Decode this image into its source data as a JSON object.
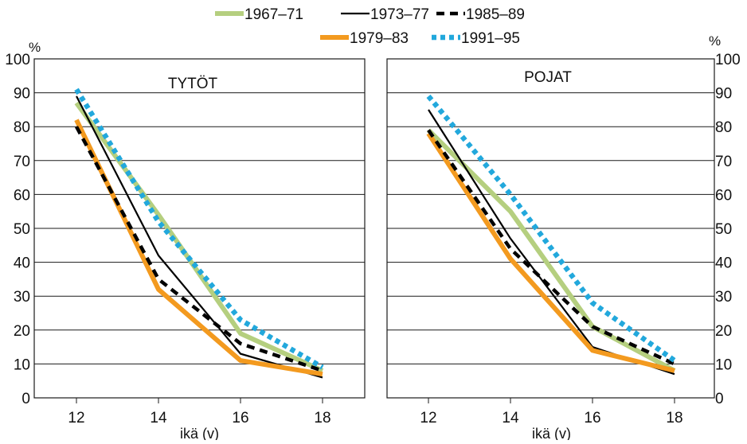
{
  "chart_data": [
    {
      "type": "line",
      "title": "TYTÖT",
      "xlabel": "ikä (v)",
      "ylabel": "%",
      "x": [
        12,
        14,
        16,
        18
      ],
      "xlim": [
        11,
        19
      ],
      "ylim": [
        0,
        100
      ],
      "yticks": [
        0,
        10,
        20,
        30,
        40,
        50,
        60,
        70,
        80,
        90,
        100
      ],
      "ytick_side": "left",
      "grid": true,
      "series": [
        {
          "name": "1967–71",
          "values": [
            87,
            54,
            19,
            8
          ]
        },
        {
          "name": "1973–77",
          "values": [
            89,
            42,
            13,
            6
          ]
        },
        {
          "name": "1985–89",
          "values": [
            80,
            35,
            16,
            8
          ]
        },
        {
          "name": "1979–83",
          "values": [
            82,
            32,
            11,
            7
          ]
        },
        {
          "name": "1991–95",
          "values": [
            91,
            52,
            23,
            9
          ]
        }
      ]
    },
    {
      "type": "line",
      "title": "POJAT",
      "xlabel": "ikä (v)",
      "ylabel": "%",
      "x": [
        12,
        14,
        16,
        18
      ],
      "xlim": [
        11,
        19
      ],
      "ylim": [
        0,
        100
      ],
      "yticks": [
        0,
        10,
        20,
        30,
        40,
        50,
        60,
        70,
        80,
        90,
        100
      ],
      "ytick_side": "right",
      "grid": true,
      "series": [
        {
          "name": "1967–71",
          "values": [
            79,
            55,
            21,
            8
          ]
        },
        {
          "name": "1973–77",
          "values": [
            85,
            47,
            15,
            7
          ]
        },
        {
          "name": "1985–89",
          "values": [
            79,
            44,
            21,
            10
          ]
        },
        {
          "name": "1979–83",
          "values": [
            78,
            41,
            14,
            8
          ]
        },
        {
          "name": "1991–95",
          "values": [
            89,
            60,
            28,
            11
          ]
        }
      ]
    }
  ],
  "legend": {
    "placement": "top-center",
    "items": [
      {
        "name": "1967–71",
        "color": "#b5cf7f",
        "style": "solid-thick"
      },
      {
        "name": "1973–77",
        "color": "#000000",
        "style": "solid-thin"
      },
      {
        "name": "1985–89",
        "color": "#000000",
        "style": "dashed"
      },
      {
        "name": "1979–83",
        "color": "#f39a1f",
        "style": "solid-thick"
      },
      {
        "name": "1991–95",
        "color": "#22a8dc",
        "style": "dotted"
      }
    ]
  }
}
